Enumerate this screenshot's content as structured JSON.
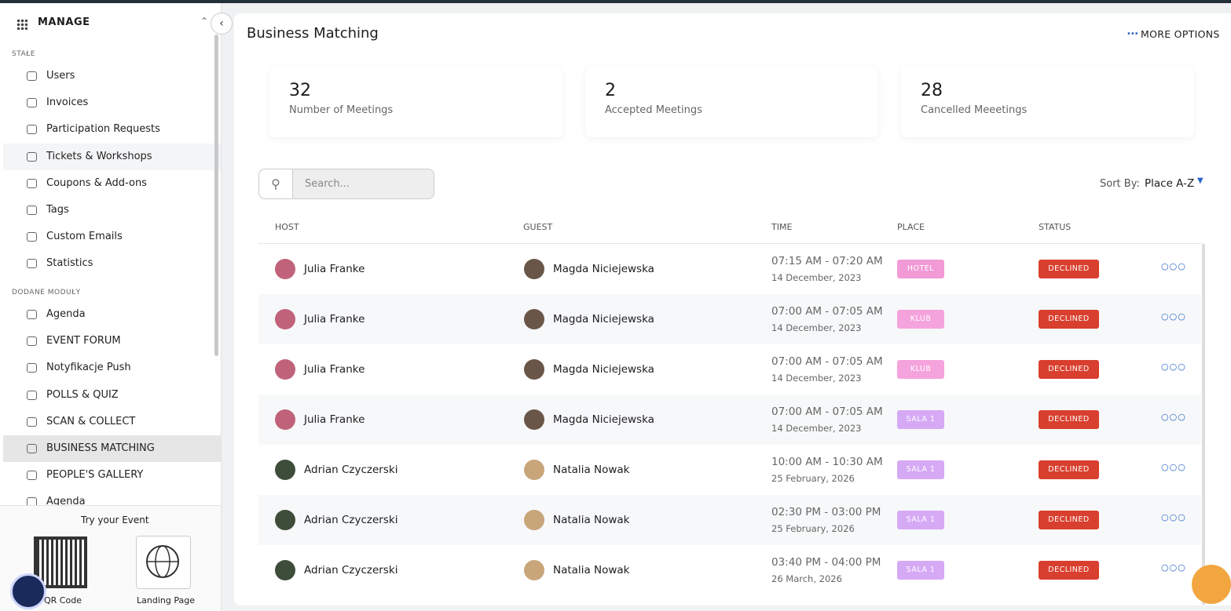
{
  "sidebar": {
    "title": "MANAGE",
    "sections": [
      {
        "label": "STAŁE",
        "highlight": 3,
        "items": [
          "Users",
          "Invoices",
          "Participation Requests",
          "Tickets & Workshops",
          "Coupons & Add-ons",
          "Tags",
          "Custom Emails",
          "Statistics"
        ]
      },
      {
        "label": "DODANE MODUŁY",
        "highlight": 5,
        "items": [
          "Agenda",
          "EVENT FORUM",
          "Notyfikacje Push",
          "POLLS & QUIZ",
          "SCAN & COLLECT",
          "BUSINESS MATCHING",
          "PEOPLE'S GALLERY",
          "Agenda"
        ]
      }
    ],
    "try": {
      "title": "Try your Event",
      "qr": "QR Code",
      "landing": "Landing Page"
    }
  },
  "main": {
    "title": "Business Matching",
    "more_options": "MORE OPTIONS",
    "stats": [
      {
        "value": 32,
        "label": "Number of Meetings"
      },
      {
        "value": 2,
        "label": "Accepted Meetings"
      },
      {
        "value": 28,
        "label": "Cancelled Meeetings"
      }
    ],
    "search_placeholder": "Search...",
    "sort_label": "Sort By:",
    "sort_value": "Place A-Z",
    "columns": [
      "HOST",
      "GUEST",
      "TIME",
      "PLACE",
      "STATUS"
    ],
    "rows": [
      {
        "host": "Julia Franke",
        "guest": "Magda Niciejewska",
        "time": "07:15 AM - 07:20 AM",
        "date": "14 December, 2023",
        "place": "HOTEL",
        "place_color": "#f29ad6",
        "status": "DECLINED"
      },
      {
        "host": "Julia Franke",
        "guest": "Magda Niciejewska",
        "time": "07:00 AM - 07:05 AM",
        "date": "14 December, 2023",
        "place": "KLUB",
        "place_color": "#f5a3dc",
        "status": "DECLINED"
      },
      {
        "host": "Julia Franke",
        "guest": "Magda Niciejewska",
        "time": "07:00 AM - 07:05 AM",
        "date": "14 December, 2023",
        "place": "KLUB",
        "place_color": "#f5a3dc",
        "status": "DECLINED"
      },
      {
        "host": "Julia Franke",
        "guest": "Magda Niciejewska",
        "time": "07:00 AM - 07:05 AM",
        "date": "14 December, 2023",
        "place": "SALA 1",
        "place_color": "#d6a9f5",
        "status": "DECLINED"
      },
      {
        "host": "Adrian Czyczerski",
        "guest": "Natalia Nowak",
        "time": "10:00 AM - 10:30 AM",
        "date": "25 February, 2026",
        "place": "SALA 1",
        "place_color": "#d6a9f5",
        "status": "DECLINED"
      },
      {
        "host": "Adrian Czyczerski",
        "guest": "Natalia Nowak",
        "time": "02:30 PM - 03:00 PM",
        "date": "25 February, 2026",
        "place": "SALA 1",
        "place_color": "#d6a9f5",
        "status": "DECLINED"
      },
      {
        "host": "Adrian Czyczerski",
        "guest": "Natalia Nowak",
        "time": "03:40 PM - 04:00 PM",
        "date": "26 March, 2026",
        "place": "SALA 1",
        "place_color": "#d6a9f5",
        "status": "DECLINED"
      }
    ]
  }
}
